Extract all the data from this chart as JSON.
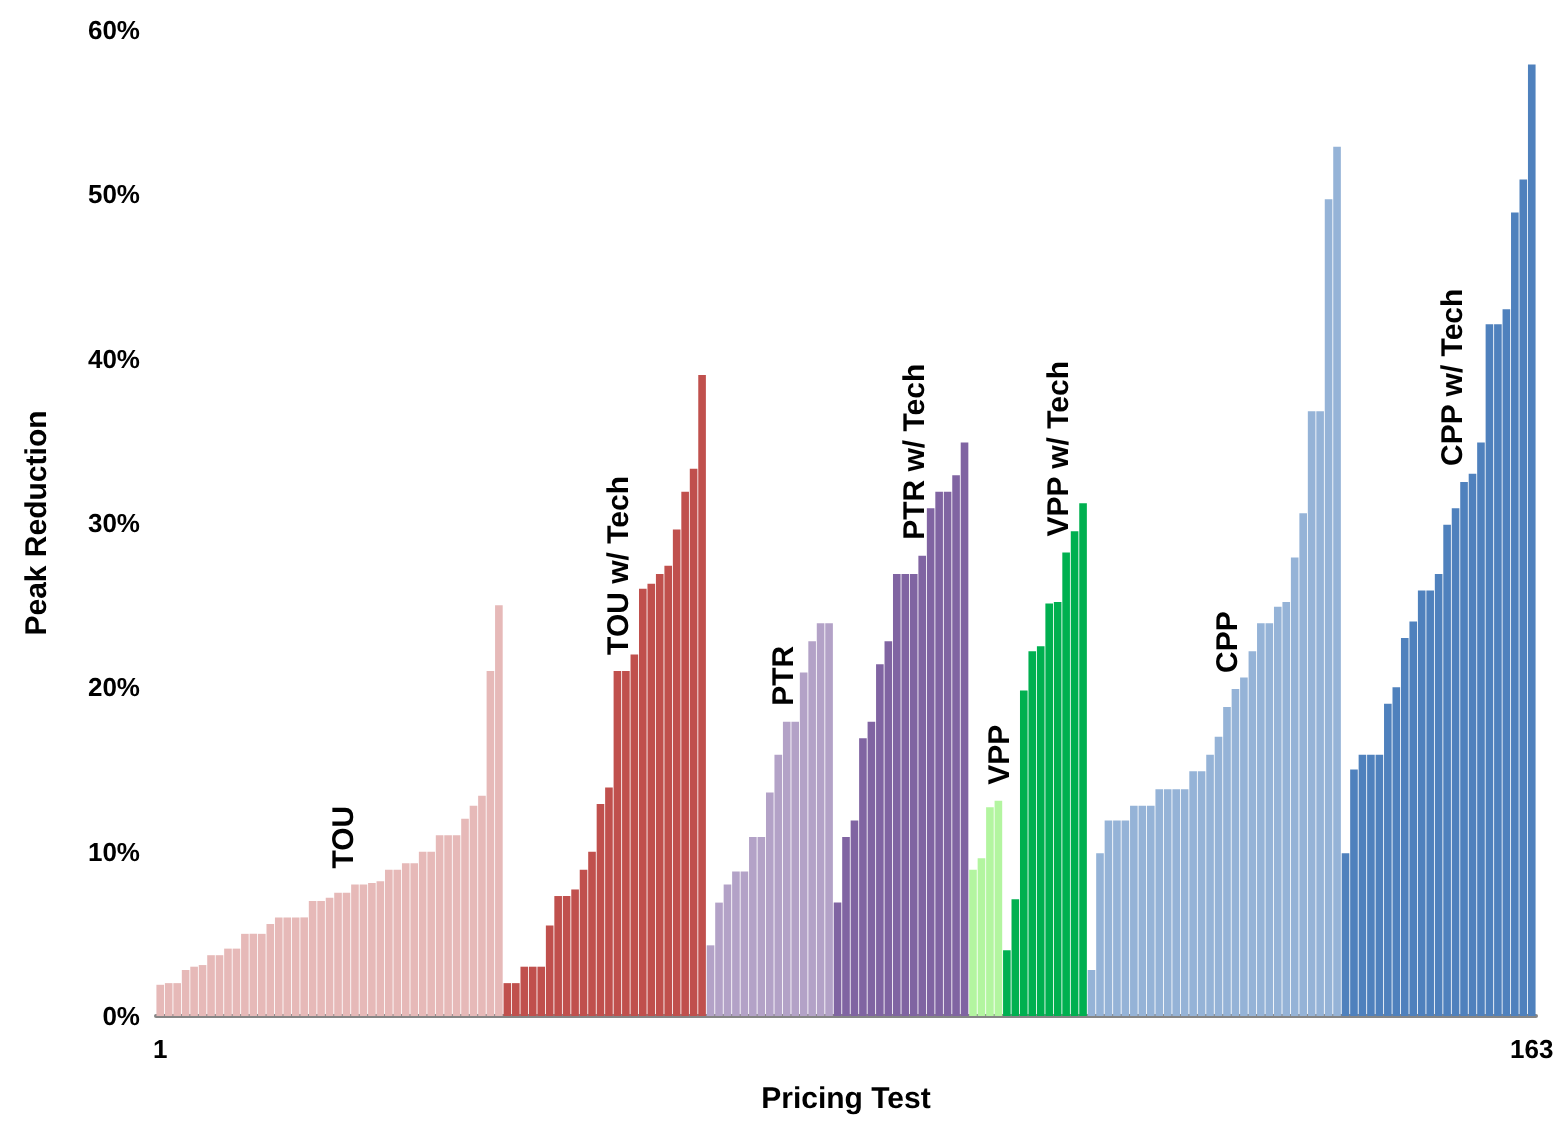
{
  "chart_data": {
    "type": "bar",
    "xlabel": "Pricing Test",
    "ylabel": "Peak Reduction",
    "xlim": [
      0.5,
      163.5
    ],
    "xticks": [
      1,
      163
    ],
    "ylim": [
      0,
      60
    ],
    "yticks": [
      {
        "value": 0,
        "label": "0%"
      },
      {
        "value": 10,
        "label": "10%"
      },
      {
        "value": 20,
        "label": "20%"
      },
      {
        "value": 30,
        "label": "30%"
      },
      {
        "value": 40,
        "label": "40%"
      },
      {
        "value": 50,
        "label": "50%"
      },
      {
        "value": 60,
        "label": "60%"
      }
    ],
    "grid": false,
    "series": [
      {
        "name": "TOU",
        "color": "#e6b9b8",
        "x": [
          1,
          2,
          3,
          4,
          5,
          6,
          7,
          8,
          9,
          10,
          11,
          12,
          13,
          14,
          15,
          16,
          17,
          18,
          19,
          20,
          21,
          22,
          23,
          24,
          25,
          26,
          27,
          28,
          29,
          30,
          31,
          32,
          33,
          34,
          35,
          36,
          37,
          38,
          39,
          40,
          41
        ],
        "values": [
          1.9,
          2.0,
          2.0,
          2.8,
          3.0,
          3.1,
          3.7,
          3.7,
          4.1,
          4.1,
          5.0,
          5.0,
          5.0,
          5.6,
          6.0,
          6.0,
          6.0,
          6.0,
          7.0,
          7.0,
          7.2,
          7.5,
          7.5,
          8.0,
          8.0,
          8.1,
          8.2,
          8.9,
          8.9,
          9.3,
          9.3,
          10.0,
          10.0,
          11.0,
          11.0,
          11.0,
          12.0,
          12.8,
          13.4,
          21.0,
          25.0
        ]
      },
      {
        "name": "TOU w/ Tech",
        "color": "#c0504d",
        "x": [
          42,
          43,
          44,
          45,
          46,
          47,
          48,
          49,
          50,
          51,
          52,
          53,
          54,
          55,
          56,
          57,
          58,
          59,
          60,
          61,
          62,
          63,
          64,
          65
        ],
        "values": [
          2.0,
          2.0,
          3.0,
          3.0,
          3.0,
          5.5,
          7.3,
          7.3,
          7.7,
          8.9,
          10.0,
          12.9,
          13.9,
          21.0,
          21.0,
          22.0,
          26.0,
          26.3,
          26.9,
          27.4,
          29.6,
          31.9,
          33.3,
          39.0
        ]
      },
      {
        "name": "PTR",
        "color": "#b3a2c7",
        "x": [
          66,
          67,
          68,
          69,
          70,
          71,
          72,
          73,
          74,
          75,
          76,
          77,
          78,
          79,
          80
        ],
        "values": [
          4.3,
          6.9,
          8.0,
          8.8,
          8.8,
          10.9,
          10.9,
          13.6,
          15.9,
          17.9,
          17.9,
          20.9,
          22.8,
          23.9,
          23.9
        ]
      },
      {
        "name": "PTR w/ Tech",
        "color": "#8064a2",
        "x": [
          81,
          82,
          83,
          84,
          85,
          86,
          87,
          88,
          89,
          90,
          91,
          92,
          93,
          94,
          95,
          96
        ],
        "values": [
          6.9,
          10.9,
          11.9,
          16.9,
          17.9,
          21.4,
          22.8,
          26.9,
          26.9,
          26.9,
          28.0,
          30.9,
          31.9,
          31.9,
          32.9,
          34.9
        ]
      },
      {
        "name": "VPP",
        "color": "#b3f5a0",
        "x": [
          97,
          98,
          99,
          100
        ],
        "values": [
          8.9,
          9.6,
          12.7,
          13.1
        ]
      },
      {
        "name": "VPP w/ Tech",
        "color": "#00b050",
        "x": [
          101,
          102,
          103,
          104,
          105,
          106,
          107,
          108,
          109,
          110
        ],
        "values": [
          4.0,
          7.1,
          19.8,
          22.2,
          22.5,
          25.1,
          25.2,
          28.2,
          29.5,
          31.2
        ]
      },
      {
        "name": "CPP",
        "color": "#95b3d7",
        "x": [
          111,
          112,
          113,
          114,
          115,
          116,
          117,
          118,
          119,
          120,
          121,
          122,
          123,
          124,
          125,
          126,
          127,
          128,
          129,
          130,
          131,
          132,
          133,
          134,
          135,
          136,
          137,
          138,
          139,
          140
        ],
        "values": [
          2.8,
          9.9,
          11.9,
          11.9,
          11.9,
          12.8,
          12.8,
          12.8,
          13.8,
          13.8,
          13.8,
          13.8,
          14.9,
          14.9,
          15.9,
          17.0,
          18.8,
          19.9,
          20.6,
          22.2,
          23.9,
          23.9,
          24.9,
          25.2,
          27.9,
          30.6,
          36.8,
          36.8,
          49.7,
          52.9
        ]
      },
      {
        "name": "CPP w/ Tech",
        "color": "#4f81bd",
        "x": [
          141,
          142,
          143,
          144,
          145,
          146,
          147,
          148,
          149,
          150,
          151,
          152,
          153,
          154,
          155,
          156,
          157,
          158,
          159,
          160,
          161,
          162,
          163
        ],
        "values": [
          9.9,
          15.0,
          15.9,
          15.9,
          15.9,
          19.0,
          20.0,
          23.0,
          24.0,
          25.9,
          25.9,
          26.9,
          29.9,
          30.9,
          32.5,
          33.0,
          34.9,
          42.1,
          42.1,
          43.0,
          48.9,
          50.9,
          57.9
        ]
      }
    ]
  }
}
